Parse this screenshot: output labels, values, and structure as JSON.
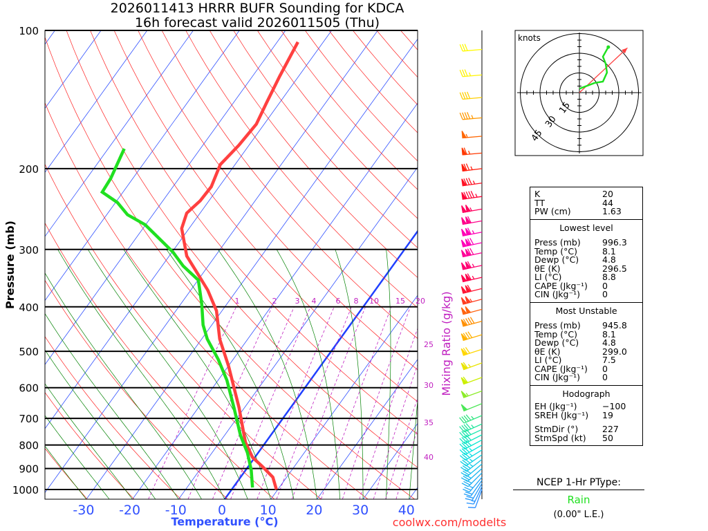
{
  "title": {
    "line1": "2026011413 HRRR BUFR Sounding for KDCA",
    "line2": "16h forecast valid 2026011505 (Thu)"
  },
  "footer": "coolwx.com/modelts",
  "chart_data": {
    "type": "line",
    "subtype": "skew-T log-P",
    "xlabel": "Temperature (°C)",
    "ylabel": "Pressure (mb)",
    "secondary_label": "Mixing Ratio (g/kg)",
    "x_ticks": [
      "-30",
      "-20",
      "-10",
      "0",
      "10",
      "20",
      "30",
      "40"
    ],
    "y_ticks": [
      "100",
      "200",
      "300",
      "400",
      "500",
      "600",
      "700",
      "800",
      "900",
      "1000"
    ],
    "pressure_range": [
      1050,
      100
    ],
    "mixing_ratio_labels": [
      "1",
      "2",
      "3",
      "4",
      "6",
      "8",
      "10",
      "15",
      "20",
      "25",
      "30",
      "35",
      "40"
    ],
    "series": [
      {
        "name": "Temperature",
        "color": "#ff4040",
        "points": [
          [
            1000,
            9.7
          ],
          [
            940,
            7.0
          ],
          [
            889,
            2.9
          ],
          [
            851,
            -0.5
          ],
          [
            789,
            -4.4
          ],
          [
            663,
            -11.2
          ],
          [
            539,
            -19.9
          ],
          [
            470,
            -26.1
          ],
          [
            408,
            -31.2
          ],
          [
            368,
            -36.3
          ],
          [
            338,
            -41.2
          ],
          [
            310,
            -46.2
          ],
          [
            270,
            -51.6
          ],
          [
            250,
            -52.9
          ],
          [
            235,
            -51.9
          ],
          [
            219,
            -51.7
          ],
          [
            196,
            -53.2
          ],
          [
            178,
            -52.2
          ],
          [
            160,
            -51.7
          ],
          [
            144,
            -52.8
          ],
          [
            126,
            -54.1
          ],
          [
            106,
            -55.5
          ]
        ]
      },
      {
        "name": "Dewpoint",
        "color": "#20e020",
        "points": [
          [
            990,
            4.2
          ],
          [
            907,
            1.2
          ],
          [
            832,
            -2.3
          ],
          [
            763,
            -6.5
          ],
          [
            663,
            -12.3
          ],
          [
            578,
            -18.1
          ],
          [
            521,
            -23.2
          ],
          [
            470,
            -28.8
          ],
          [
            438,
            -31.9
          ],
          [
            395,
            -35.4
          ],
          [
            350,
            -39.9
          ],
          [
            326,
            -45.4
          ],
          [
            304,
            -49.8
          ],
          [
            284,
            -54.9
          ],
          [
            265,
            -60.1
          ],
          [
            252,
            -65.5
          ],
          [
            237,
            -69.6
          ],
          [
            225,
            -74.5
          ],
          [
            210,
            -74.8
          ],
          [
            181,
            -76.5
          ]
        ]
      }
    ],
    "winds": [
      [
        1000,
        200,
        10
      ],
      [
        985,
        205,
        14
      ],
      [
        970,
        210,
        18
      ],
      [
        955,
        215,
        22
      ],
      [
        940,
        220,
        25
      ],
      [
        920,
        225,
        28
      ],
      [
        900,
        228,
        30
      ],
      [
        880,
        230,
        32
      ],
      [
        860,
        232,
        34
      ],
      [
        840,
        235,
        35
      ],
      [
        820,
        238,
        36
      ],
      [
        800,
        240,
        37
      ],
      [
        780,
        242,
        38
      ],
      [
        760,
        243,
        40
      ],
      [
        740,
        245,
        42
      ],
      [
        720,
        246,
        43
      ],
      [
        690,
        247,
        45
      ],
      [
        650,
        248,
        50
      ],
      [
        610,
        250,
        55
      ],
      [
        570,
        250,
        60
      ],
      [
        530,
        250,
        65
      ],
      [
        495,
        252,
        70
      ],
      [
        460,
        253,
        80
      ],
      [
        430,
        255,
        90
      ],
      [
        405,
        255,
        100
      ],
      [
        385,
        255,
        105
      ],
      [
        365,
        256,
        110
      ],
      [
        345,
        257,
        115
      ],
      [
        325,
        258,
        115
      ],
      [
        305,
        258,
        120
      ],
      [
        290,
        258,
        120
      ],
      [
        275,
        259,
        115
      ],
      [
        260,
        260,
        110
      ],
      [
        245,
        260,
        105
      ],
      [
        230,
        262,
        95
      ],
      [
        215,
        262,
        85
      ],
      [
        200,
        263,
        75
      ],
      [
        185,
        265,
        65
      ],
      [
        170,
        265,
        55
      ],
      [
        155,
        265,
        45
      ],
      [
        140,
        265,
        40
      ],
      [
        125,
        265,
        35
      ],
      [
        110,
        265,
        30
      ]
    ],
    "hodograph": {
      "label": "knots",
      "ring_labels": [
        "15",
        "30",
        "45"
      ],
      "trace_uv_kt": [
        [
          0,
          3
        ],
        [
          11.6,
          7.4
        ],
        [
          17.9,
          8.4
        ],
        [
          21,
          15.3
        ],
        [
          20,
          22
        ],
        [
          17.9,
          27.4
        ],
        [
          22,
          34.7
        ]
      ],
      "storm_motion": {
        "dir": 227,
        "speed": 50
      }
    }
  },
  "stats": {
    "indices": [
      {
        "k": "K",
        "v": "20"
      },
      {
        "k": "TT",
        "v": "44"
      },
      {
        "k": "PW (cm)",
        "v": "1.63"
      }
    ],
    "lowest": {
      "header": "Lowest level",
      "rows": [
        {
          "k": "Press (mb)",
          "v": "996.3"
        },
        {
          "k": "Temp (°C)",
          "v": "8.1"
        },
        {
          "k": "Dewp (°C)",
          "v": "4.8"
        },
        {
          "k": "θE (K)",
          "v": "296.5"
        },
        {
          "k": "LI (°C)",
          "v": "8.8"
        },
        {
          "k": "CAPE (Jkg⁻¹)",
          "v": "0"
        },
        {
          "k": "CIN (Jkg⁻¹)",
          "v": "0"
        }
      ]
    },
    "unstable": {
      "header": "Most Unstable",
      "rows": [
        {
          "k": "Press (mb)",
          "v": "945.8"
        },
        {
          "k": "Temp (°C)",
          "v": "8.1"
        },
        {
          "k": "Dewp (°C)",
          "v": "4.8"
        },
        {
          "k": "θE (K)",
          "v": "299.0"
        },
        {
          "k": "LI (°C)",
          "v": "7.5"
        },
        {
          "k": "CAPE (Jkg⁻¹)",
          "v": "0"
        },
        {
          "k": "CIN (Jkg⁻¹)",
          "v": "0"
        }
      ]
    },
    "hodo": {
      "header": "Hodograph",
      "rows": [
        {
          "k": "EH (Jkg⁻¹)",
          "v": "−100"
        },
        {
          "k": "SREH (Jkg⁻¹)",
          "v": "19"
        }
      ],
      "rows2": [
        {
          "k": "StmDir (°)",
          "v": "227"
        },
        {
          "k": "StmSpd (kt)",
          "v": "50"
        }
      ]
    }
  },
  "ptype": {
    "label": "NCEP 1-Hr PType:",
    "value": "Rain",
    "value_color": "#20e020",
    "amount": "(0.00\" L.E.)"
  }
}
